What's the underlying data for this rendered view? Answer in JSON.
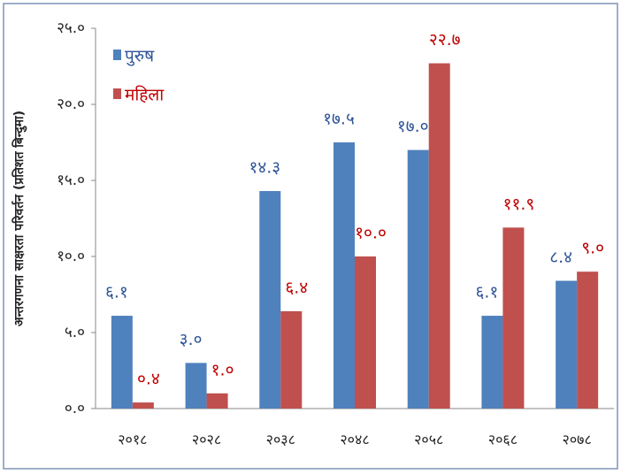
{
  "chart_data": {
    "type": "bar",
    "y_label": "अन्तरगणना साक्षरता परिवर्तन (प्रतिशत बिन्दुमा)",
    "categories": [
      "२०१८",
      "२०२८",
      "२०३८",
      "२०४८",
      "२०५८",
      "२०६८",
      "२०७८"
    ],
    "series": [
      {
        "name": "पुरुष",
        "color": "#4f81bd",
        "label_color": "#2f5597",
        "values": [
          6.1,
          3.0,
          14.3,
          17.5,
          17.0,
          6.1,
          8.4
        ],
        "value_labels": [
          "६.१",
          "३.०",
          "१४.३",
          "१७.५",
          "१७.०",
          "६.१",
          "८.४"
        ]
      },
      {
        "name": "महिला",
        "color": "#c0504d",
        "label_color": "#c00000",
        "values": [
          0.4,
          1.0,
          6.4,
          10.0,
          22.7,
          11.9,
          9.0
        ],
        "value_labels": [
          "०.४",
          "१.०",
          "६.४",
          "१०.०",
          "२२.७",
          "११.९",
          "९.०"
        ]
      }
    ],
    "ylim": [
      0,
      25
    ],
    "yticks": [
      {
        "value": 0,
        "label": "०.०"
      },
      {
        "value": 5,
        "label": "५.०"
      },
      {
        "value": 10,
        "label": "१०.०"
      },
      {
        "value": 15,
        "label": "१५.०"
      },
      {
        "value": 20,
        "label": "२०.०"
      },
      {
        "value": 25,
        "label": "२५.०"
      }
    ],
    "legend": "top-left"
  }
}
